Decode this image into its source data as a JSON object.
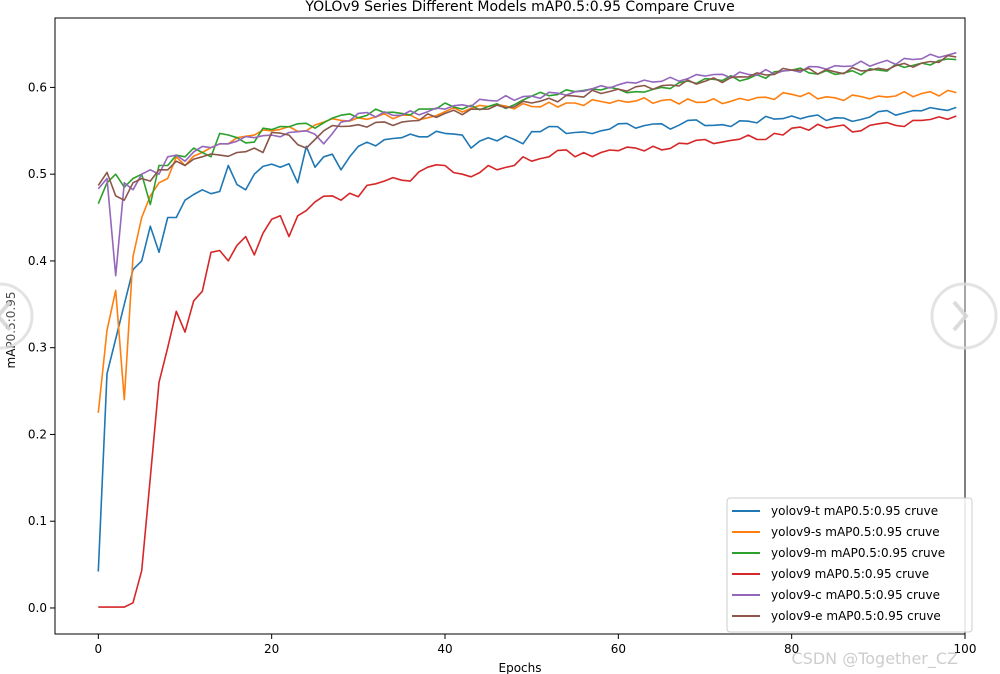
{
  "chart_data": {
    "type": "line",
    "title": "YOLOv9 Series Different Models mAP0.5:0.95 Compare Cruve",
    "xlabel": "Epochs",
    "ylabel": "mAP0.5:0.95",
    "xlim": [
      -5,
      100
    ],
    "ylim": [
      -0.03,
      0.68
    ],
    "xticks": [
      0,
      20,
      40,
      60,
      80,
      100
    ],
    "yticks": [
      0.0,
      0.1,
      0.2,
      0.3,
      0.4,
      0.5,
      0.6
    ],
    "grid": false,
    "legend": "bottom-right",
    "series": [
      {
        "name": "yolov9-t mAP0.5:0.95 cruve",
        "color": "#1f77b4",
        "anchors": [
          [
            0,
            0.042
          ],
          [
            1,
            0.27
          ],
          [
            2,
            0.31
          ],
          [
            3,
            0.35
          ],
          [
            4,
            0.39
          ],
          [
            5,
            0.4
          ],
          [
            6,
            0.44
          ],
          [
            7,
            0.41
          ],
          [
            8,
            0.45
          ],
          [
            9,
            0.45
          ],
          [
            10,
            0.47
          ],
          [
            12,
            0.482
          ],
          [
            14,
            0.48
          ],
          [
            15,
            0.51
          ],
          [
            16,
            0.488
          ],
          [
            17,
            0.482
          ],
          [
            18,
            0.5
          ],
          [
            19,
            0.509
          ],
          [
            21,
            0.508
          ],
          [
            22,
            0.512
          ],
          [
            23,
            0.49
          ],
          [
            24,
            0.532
          ],
          [
            25,
            0.508
          ],
          [
            26,
            0.52
          ],
          [
            27,
            0.523
          ],
          [
            28,
            0.505
          ],
          [
            29,
            0.52
          ],
          [
            30,
            0.532
          ],
          [
            35,
            0.542
          ],
          [
            40,
            0.547
          ],
          [
            42,
            0.545
          ],
          [
            43,
            0.53
          ],
          [
            45,
            0.542
          ],
          [
            48,
            0.54
          ],
          [
            49,
            0.535
          ],
          [
            50,
            0.549
          ],
          [
            52,
            0.555
          ],
          [
            55,
            0.548
          ],
          [
            58,
            0.55
          ],
          [
            60,
            0.558
          ],
          [
            62,
            0.553
          ],
          [
            65,
            0.558
          ],
          [
            66,
            0.552
          ],
          [
            68,
            0.562
          ],
          [
            70,
            0.556
          ],
          [
            72,
            0.557
          ],
          [
            75,
            0.561
          ],
          [
            80,
            0.567
          ],
          [
            85,
            0.565
          ],
          [
            88,
            0.563
          ],
          [
            90,
            0.572
          ],
          [
            92,
            0.568
          ],
          [
            95,
            0.573
          ],
          [
            99,
            0.577
          ]
        ]
      },
      {
        "name": "yolov9-s mAP0.5:0.95 cruve",
        "color": "#ff7f0e",
        "anchors": [
          [
            0,
            0.225
          ],
          [
            1,
            0.32
          ],
          [
            2,
            0.366
          ],
          [
            3,
            0.24
          ],
          [
            4,
            0.405
          ],
          [
            5,
            0.45
          ],
          [
            6,
            0.475
          ],
          [
            7,
            0.49
          ],
          [
            8,
            0.495
          ],
          [
            9,
            0.52
          ],
          [
            10,
            0.51
          ],
          [
            12,
            0.525
          ],
          [
            14,
            0.535
          ],
          [
            16,
            0.542
          ],
          [
            18,
            0.545
          ],
          [
            20,
            0.55
          ],
          [
            22,
            0.555
          ],
          [
            24,
            0.55
          ],
          [
            26,
            0.56
          ],
          [
            28,
            0.562
          ],
          [
            30,
            0.565
          ],
          [
            35,
            0.568
          ],
          [
            38,
            0.565
          ],
          [
            40,
            0.572
          ],
          [
            45,
            0.578
          ],
          [
            50,
            0.578
          ],
          [
            55,
            0.582
          ],
          [
            60,
            0.585
          ],
          [
            65,
            0.585
          ],
          [
            70,
            0.583
          ],
          [
            75,
            0.585
          ],
          [
            80,
            0.592
          ],
          [
            85,
            0.588
          ],
          [
            90,
            0.59
          ],
          [
            95,
            0.593
          ],
          [
            99,
            0.594
          ]
        ]
      },
      {
        "name": "yolov9-m mAP0.5:0.95 cruve",
        "color": "#2ca02c",
        "anchors": [
          [
            0,
            0.466
          ],
          [
            1,
            0.49
          ],
          [
            2,
            0.5
          ],
          [
            3,
            0.485
          ],
          [
            4,
            0.495
          ],
          [
            5,
            0.5
          ],
          [
            6,
            0.465
          ],
          [
            7,
            0.51
          ],
          [
            8,
            0.51
          ],
          [
            9,
            0.522
          ],
          [
            10,
            0.52
          ],
          [
            11,
            0.53
          ],
          [
            12,
            0.525
          ],
          [
            13,
            0.52
          ],
          [
            14,
            0.547
          ],
          [
            16,
            0.542
          ],
          [
            18,
            0.537
          ],
          [
            19,
            0.553
          ],
          [
            21,
            0.555
          ],
          [
            23,
            0.558
          ],
          [
            25,
            0.553
          ],
          [
            28,
            0.568
          ],
          [
            30,
            0.565
          ],
          [
            32,
            0.575
          ],
          [
            35,
            0.57
          ],
          [
            38,
            0.575
          ],
          [
            40,
            0.582
          ],
          [
            42,
            0.575
          ],
          [
            45,
            0.578
          ],
          [
            48,
            0.58
          ],
          [
            50,
            0.59
          ],
          [
            55,
            0.595
          ],
          [
            58,
            0.597
          ],
          [
            60,
            0.598
          ],
          [
            62,
            0.595
          ],
          [
            65,
            0.6
          ],
          [
            70,
            0.61
          ],
          [
            75,
            0.61
          ],
          [
            80,
            0.62
          ],
          [
            85,
            0.615
          ],
          [
            90,
            0.62
          ],
          [
            95,
            0.628
          ],
          [
            99,
            0.632
          ]
        ]
      },
      {
        "name": "yolov9 mAP0.5:0.95 cruve",
        "color": "#d62728",
        "anchors": [
          [
            0,
            0.001
          ],
          [
            3,
            0.001
          ],
          [
            4,
            0.006
          ],
          [
            5,
            0.043
          ],
          [
            6,
            0.15
          ],
          [
            7,
            0.26
          ],
          [
            8,
            0.3
          ],
          [
            9,
            0.342
          ],
          [
            10,
            0.318
          ],
          [
            11,
            0.354
          ],
          [
            12,
            0.365
          ],
          [
            13,
            0.41
          ],
          [
            14,
            0.412
          ],
          [
            15,
            0.4
          ],
          [
            16,
            0.418
          ],
          [
            17,
            0.428
          ],
          [
            18,
            0.407
          ],
          [
            19,
            0.432
          ],
          [
            20,
            0.448
          ],
          [
            21,
            0.452
          ],
          [
            22,
            0.428
          ],
          [
            23,
            0.452
          ],
          [
            25,
            0.468
          ],
          [
            27,
            0.475
          ],
          [
            28,
            0.47
          ],
          [
            29,
            0.478
          ],
          [
            30,
            0.474
          ],
          [
            31,
            0.487
          ],
          [
            33,
            0.492
          ],
          [
            35,
            0.493
          ],
          [
            36,
            0.492
          ],
          [
            38,
            0.508
          ],
          [
            40,
            0.51
          ],
          [
            42,
            0.5
          ],
          [
            43,
            0.497
          ],
          [
            45,
            0.51
          ],
          [
            46,
            0.505
          ],
          [
            48,
            0.51
          ],
          [
            49,
            0.52
          ],
          [
            50,
            0.515
          ],
          [
            52,
            0.52
          ],
          [
            54,
            0.528
          ],
          [
            55,
            0.52
          ],
          [
            58,
            0.525
          ],
          [
            60,
            0.527
          ],
          [
            62,
            0.53
          ],
          [
            65,
            0.528
          ],
          [
            68,
            0.535
          ],
          [
            70,
            0.54
          ],
          [
            72,
            0.537
          ],
          [
            75,
            0.545
          ],
          [
            77,
            0.54
          ],
          [
            80,
            0.553
          ],
          [
            85,
            0.555
          ],
          [
            88,
            0.55
          ],
          [
            90,
            0.558
          ],
          [
            93,
            0.555
          ],
          [
            95,
            0.562
          ],
          [
            97,
            0.566
          ],
          [
            99,
            0.567
          ]
        ]
      },
      {
        "name": "yolov9-c mAP0.5:0.95 cruve",
        "color": "#9467bd",
        "anchors": [
          [
            0,
            0.483
          ],
          [
            1,
            0.495
          ],
          [
            2,
            0.383
          ],
          [
            3,
            0.49
          ],
          [
            4,
            0.482
          ],
          [
            5,
            0.5
          ],
          [
            6,
            0.505
          ],
          [
            7,
            0.5
          ],
          [
            8,
            0.52
          ],
          [
            9,
            0.522
          ],
          [
            10,
            0.515
          ],
          [
            12,
            0.532
          ],
          [
            14,
            0.535
          ],
          [
            16,
            0.538
          ],
          [
            18,
            0.542
          ],
          [
            20,
            0.545
          ],
          [
            22,
            0.548
          ],
          [
            24,
            0.55
          ],
          [
            26,
            0.535
          ],
          [
            28,
            0.56
          ],
          [
            30,
            0.57
          ],
          [
            35,
            0.568
          ],
          [
            40,
            0.575
          ],
          [
            45,
            0.585
          ],
          [
            50,
            0.59
          ],
          [
            55,
            0.595
          ],
          [
            58,
            0.602
          ],
          [
            60,
            0.603
          ],
          [
            62,
            0.605
          ],
          [
            65,
            0.607
          ],
          [
            70,
            0.613
          ],
          [
            75,
            0.615
          ],
          [
            80,
            0.62
          ],
          [
            85,
            0.625
          ],
          [
            90,
            0.628
          ],
          [
            95,
            0.633
          ],
          [
            99,
            0.64
          ]
        ]
      },
      {
        "name": "yolov9-e mAP0.5:0.95 cruve",
        "color": "#8c564b",
        "anchors": [
          [
            0,
            0.487
          ],
          [
            1,
            0.502
          ],
          [
            2,
            0.475
          ],
          [
            3,
            0.47
          ],
          [
            4,
            0.49
          ],
          [
            5,
            0.495
          ],
          [
            6,
            0.492
          ],
          [
            7,
            0.505
          ],
          [
            8,
            0.505
          ],
          [
            9,
            0.515
          ],
          [
            10,
            0.51
          ],
          [
            12,
            0.52
          ],
          [
            14,
            0.522
          ],
          [
            16,
            0.525
          ],
          [
            18,
            0.53
          ],
          [
            19,
            0.525
          ],
          [
            20,
            0.548
          ],
          [
            22,
            0.545
          ],
          [
            24,
            0.53
          ],
          [
            26,
            0.55
          ],
          [
            28,
            0.555
          ],
          [
            30,
            0.557
          ],
          [
            35,
            0.56
          ],
          [
            40,
            0.57
          ],
          [
            45,
            0.575
          ],
          [
            50,
            0.582
          ],
          [
            55,
            0.59
          ],
          [
            60,
            0.598
          ],
          [
            65,
            0.602
          ],
          [
            70,
            0.607
          ],
          [
            75,
            0.612
          ],
          [
            80,
            0.62
          ],
          [
            85,
            0.618
          ],
          [
            90,
            0.622
          ],
          [
            95,
            0.628
          ],
          [
            99,
            0.635
          ]
        ]
      }
    ]
  },
  "watermark": "CSDN @Together_CZ",
  "icons": {
    "prev": "chevron-left-icon",
    "next": "chevron-right-icon"
  }
}
